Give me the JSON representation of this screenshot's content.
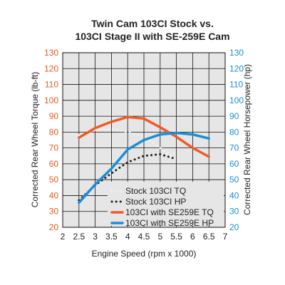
{
  "chart_data": {
    "type": "line",
    "title": [
      "Twin Cam 103CI Stock vs.",
      "103CI Stage II with SE-259E Cam"
    ],
    "xlabel": "Engine Speed (rpm x 1000)",
    "ylabel_left": "Corrected Rear Wheel Torque (lb-ft)",
    "ylabel_right": "Corrected Rear Wheel Horsepower (hp)",
    "xlim": [
      2,
      7
    ],
    "ylim": [
      20,
      130
    ],
    "x_ticks": [
      "2",
      "2.5",
      "3",
      "3.5",
      "4",
      "4.5",
      "5",
      "5.5",
      "6",
      "6.5",
      "7"
    ],
    "y_ticks": [
      "20",
      "30",
      "40",
      "50",
      "60",
      "70",
      "80",
      "90",
      "100",
      "110",
      "120",
      "130"
    ],
    "grid": true,
    "legend_position": "bottom-right",
    "series": [
      {
        "name": "Stock 103CI TQ",
        "axis": "left",
        "color": "#f0f0f0",
        "style": "dotted",
        "x": [
          2.5,
          3.0,
          3.5,
          4.0,
          4.5,
          5.0,
          5.5
        ],
        "y": [
          78,
          81.5,
          82,
          80,
          77,
          70,
          62
        ]
      },
      {
        "name": "Stock 103CI HP",
        "axis": "right",
        "color": "#222222",
        "style": "dotted",
        "x": [
          2.5,
          3.0,
          3.5,
          4.0,
          4.5,
          5.0,
          5.5
        ],
        "y": [
          37,
          46.5,
          54,
          61,
          65,
          66,
          63
        ]
      },
      {
        "name": "103CI with SE259E TQ",
        "axis": "left",
        "color": "#f05a28",
        "style": "solid",
        "x": [
          2.5,
          3.0,
          3.5,
          4.0,
          4.5,
          5.0,
          5.5,
          6.0,
          6.5
        ],
        "y": [
          76.5,
          82.5,
          86.5,
          89.5,
          88.5,
          83,
          77,
          70,
          64.5
        ]
      },
      {
        "name": "103CI with SE259E HP",
        "axis": "right",
        "color": "#1a8ed8",
        "style": "solid",
        "x": [
          2.5,
          3.0,
          3.5,
          4.0,
          4.5,
          5.0,
          5.5,
          6.0,
          6.5
        ],
        "y": [
          35.5,
          47,
          57,
          69,
          75,
          78.5,
          79.5,
          78.5,
          76
        ]
      }
    ],
    "colors": {
      "left_axis": "#f05a28",
      "right_axis": "#1a8ed8",
      "plot_background": "#e6e6e6",
      "grid": "#111111"
    }
  }
}
